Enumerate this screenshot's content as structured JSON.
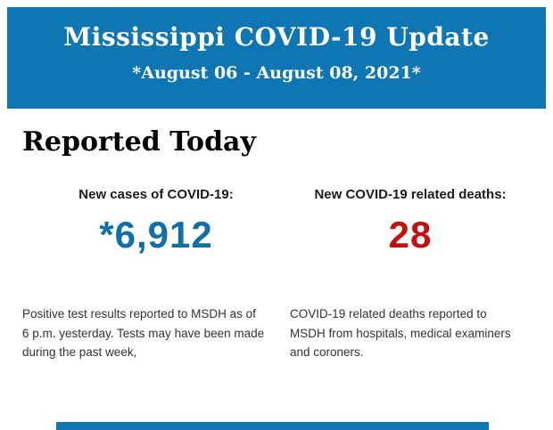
{
  "header": {
    "title": "Mississippi COVID-19 Update",
    "subtitle": "*August 06 - August 08, 2021*",
    "background_color": "#0e76b2",
    "text_color": "#ffffff"
  },
  "section": {
    "heading": "Reported Today"
  },
  "stats": {
    "cases": {
      "label": "New cases of COVID-19:",
      "value": "*6,912",
      "value_color": "#116ea6",
      "description": "Positive test results reported to MSDH as of 6 p.m. yesterday. Tests may have been made during the past week,"
    },
    "deaths": {
      "label": "New COVID-19 related deaths:",
      "value": "28",
      "value_color": "#c3100f",
      "description": "COVID-19 related deaths reported to MSDH from hospitals, medical examiners and coroners."
    }
  },
  "footer": {
    "bar_color": "#0e76b2"
  }
}
